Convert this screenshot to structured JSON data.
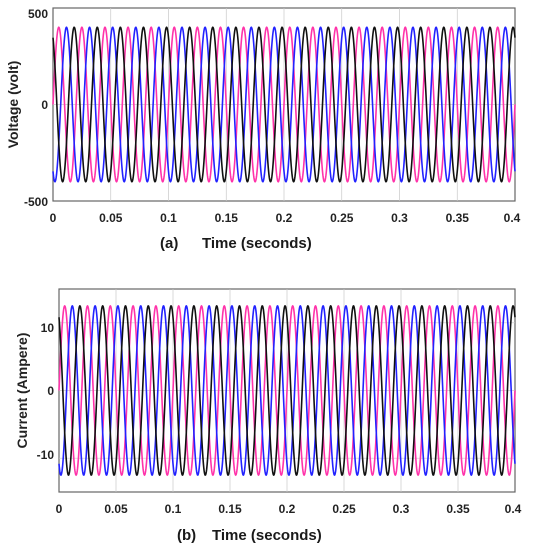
{
  "chart_data": [
    {
      "type": "line",
      "caption_letter": "(a)",
      "xlabel": "Time (seconds)",
      "ylabel": "Voltage (volt)",
      "xlim": [
        0,
        0.4
      ],
      "ylim": [
        -500,
        500
      ],
      "xticks": [
        "0",
        "0.05",
        "0.1",
        "0.15",
        "0.2",
        "0.25",
        "0.3",
        "0.35",
        "0.4"
      ],
      "yticks": [
        "500",
        "0",
        "-500"
      ],
      "grid": true,
      "waveform": "sine",
      "frequency_hz": 50,
      "amplitude": 400,
      "series": [
        {
          "color": "#ff33aa",
          "phase_deg": 0
        },
        {
          "color": "#2222ff",
          "phase_deg": -120
        },
        {
          "color": "#111111",
          "phase_deg": 120
        }
      ]
    },
    {
      "type": "line",
      "caption_letter": "(b)",
      "xlabel": "Time (seconds)",
      "ylabel": "Current (Ampere)",
      "xlim": [
        0,
        0.4
      ],
      "ylim": [
        -15,
        15
      ],
      "xticks": [
        "0",
        "0.05",
        "0.1",
        "0.15",
        "0.2",
        "0.25",
        "0.3",
        "0.35",
        "0.4"
      ],
      "yticks": [
        "10",
        "0",
        "-10"
      ],
      "grid": true,
      "waveform": "sine",
      "frequency_hz": 50,
      "amplitude": 12.5,
      "series": [
        {
          "color": "#ff33aa",
          "phase_deg": 0
        },
        {
          "color": "#2222ff",
          "phase_deg": -120
        },
        {
          "color": "#111111",
          "phase_deg": 120
        }
      ]
    }
  ]
}
